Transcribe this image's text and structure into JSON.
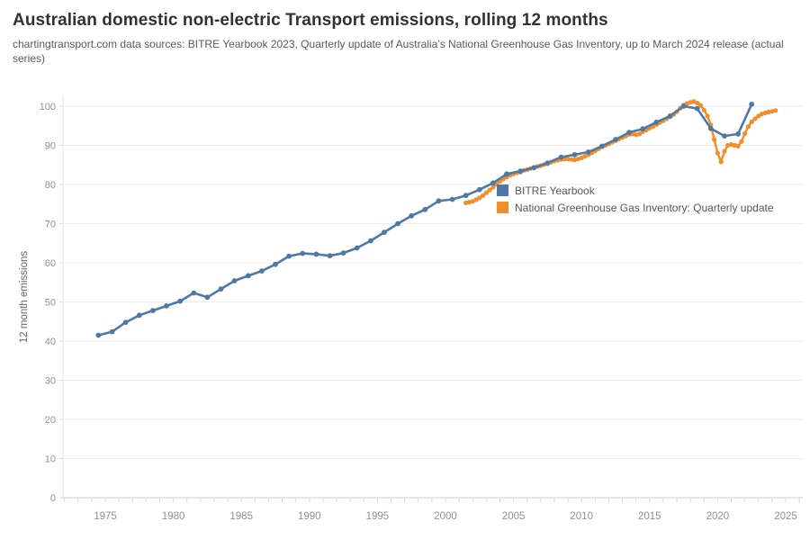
{
  "header": {
    "title": "Australian domestic non-electric Transport emissions, rolling 12 months",
    "subtitle": "chartingtransport.com  data sources: BITRE Yearbook 2023, Quarterly update of Australia’s National Greenhouse Gas Inventory, up to March 2024 release (actual series)"
  },
  "chart_data": {
    "type": "line",
    "title": "Australian domestic non-electric Transport emissions, rolling 12 months",
    "xlabel": "",
    "ylabel": "12 month emissions",
    "ylim": [
      0,
      100
    ],
    "yticks": [
      0,
      10,
      20,
      30,
      40,
      50,
      60,
      70,
      80,
      90,
      100
    ],
    "xticks": [
      1975,
      1980,
      1985,
      1990,
      1995,
      2000,
      2005,
      2010,
      2015,
      2020,
      2025
    ],
    "xlim": [
      1971.9,
      2026.3
    ],
    "grid": "horizontal",
    "legend_position": "inside-right",
    "colors": {
      "axis_text": "#8d929b",
      "grid": "#ececec",
      "axis_line": "#d8d8d8",
      "title": "#323232",
      "subtitle": "#5a5a5a"
    },
    "series": [
      {
        "name": "BITRE Yearbook",
        "color": "#4e79a7",
        "marker": "circle",
        "x": [
          1974.5,
          1975.5,
          1976.5,
          1977.5,
          1978.5,
          1979.5,
          1980.5,
          1981.5,
          1982.5,
          1983.5,
          1984.5,
          1985.5,
          1986.5,
          1987.5,
          1988.5,
          1989.5,
          1990.5,
          1991.5,
          1992.5,
          1993.5,
          1994.5,
          1995.5,
          1996.5,
          1997.5,
          1998.5,
          1999.5,
          2000.5,
          2001.5,
          2002.5,
          2003.5,
          2004.5,
          2005.5,
          2006.5,
          2007.5,
          2008.5,
          2009.5,
          2010.5,
          2011.5,
          2012.5,
          2013.5,
          2014.5,
          2015.5,
          2016.5,
          2017.5,
          2018.5,
          2019.5,
          2020.5,
          2021.5,
          2022.5
        ],
        "values": [
          41.5,
          42.4,
          44.8,
          46.6,
          47.8,
          49.0,
          50.2,
          52.3,
          51.2,
          53.3,
          55.4,
          56.7,
          57.9,
          59.6,
          61.7,
          62.4,
          62.2,
          61.8,
          62.5,
          63.8,
          65.6,
          67.8,
          70.0,
          72.0,
          73.6,
          75.8,
          76.2,
          77.2,
          78.7,
          80.4,
          82.7,
          83.4,
          84.3,
          85.5,
          87.0,
          87.6,
          88.3,
          89.8,
          91.5,
          93.3,
          94.2,
          95.9,
          97.5,
          100.0,
          99.4,
          94.3,
          92.4,
          92.9,
          100.5
        ]
      },
      {
        "name": "National Greenhouse Gas Inventory: Quarterly update",
        "color": "#f28e2b",
        "marker": "circle",
        "x": [
          2001.5,
          2001.75,
          2002.0,
          2002.25,
          2002.5,
          2002.75,
          2003.0,
          2003.25,
          2003.5,
          2003.75,
          2004.0,
          2004.25,
          2004.5,
          2004.75,
          2005.0,
          2005.25,
          2005.5,
          2005.75,
          2006.0,
          2006.25,
          2006.5,
          2006.75,
          2007.0,
          2007.25,
          2007.5,
          2007.75,
          2008.0,
          2008.25,
          2008.5,
          2008.75,
          2009.0,
          2009.25,
          2009.5,
          2009.75,
          2010.0,
          2010.25,
          2010.5,
          2010.75,
          2011.0,
          2011.25,
          2011.5,
          2011.75,
          2012.0,
          2012.25,
          2012.5,
          2012.75,
          2013.0,
          2013.25,
          2013.5,
          2013.75,
          2014.0,
          2014.25,
          2014.5,
          2014.75,
          2015.0,
          2015.25,
          2015.5,
          2015.75,
          2016.0,
          2016.25,
          2016.5,
          2016.75,
          2017.0,
          2017.25,
          2017.5,
          2017.75,
          2018.0,
          2018.25,
          2018.5,
          2018.75,
          2019.0,
          2019.25,
          2019.5,
          2019.75,
          2020.0,
          2020.25,
          2020.5,
          2020.75,
          2021.0,
          2021.25,
          2021.5,
          2021.75,
          2022.0,
          2022.25,
          2022.5,
          2022.75,
          2023.0,
          2023.25,
          2023.5,
          2023.75,
          2024.0,
          2024.25
        ],
        "values": [
          75.3,
          75.5,
          75.7,
          76.1,
          76.6,
          77.2,
          77.9,
          78.6,
          79.3,
          80.1,
          80.8,
          81.4,
          81.9,
          82.4,
          82.7,
          83.0,
          83.2,
          83.6,
          83.8,
          84.1,
          84.3,
          84.6,
          84.8,
          85.1,
          85.3,
          85.7,
          86.0,
          86.2,
          86.4,
          86.5,
          86.5,
          86.4,
          86.3,
          86.5,
          86.8,
          87.2,
          87.6,
          88.1,
          88.6,
          89.1,
          89.6,
          90.0,
          90.4,
          90.8,
          91.2,
          91.6,
          92.0,
          92.4,
          92.8,
          92.9,
          92.7,
          92.9,
          93.5,
          93.9,
          94.4,
          94.8,
          95.3,
          95.8,
          96.3,
          96.8,
          97.3,
          97.9,
          98.6,
          99.5,
          100.3,
          100.7,
          101.0,
          101.2,
          100.8,
          100.2,
          99.0,
          97.5,
          95.2,
          91.5,
          88.0,
          85.8,
          88.5,
          90.0,
          90.2,
          90.0,
          89.8,
          91.0,
          93.0,
          94.8,
          96.0,
          96.8,
          97.5,
          98.0,
          98.3,
          98.5,
          98.7,
          98.9
        ]
      }
    ]
  }
}
